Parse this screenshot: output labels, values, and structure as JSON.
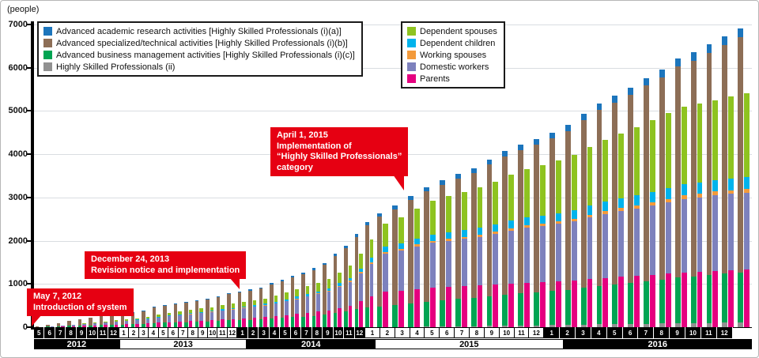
{
  "annotations": [
    {
      "lines": [
        "May 7, 2012",
        "Introduction of system"
      ]
    },
    {
      "lines": [
        "December 24, 2013",
        "Revision notice and implementation"
      ]
    },
    {
      "lines": [
        "April 1, 2015",
        "Implementation of",
        "“Highly Skilled Professionals”",
        "category"
      ]
    }
  ],
  "legend_left": [
    {
      "label": "Advanced academic research activities [Highly Skilled Professionals (i)(a)]",
      "color": "#1c75bc"
    },
    {
      "label": "Advanced specialized/technical activities [Highly Skilled Professionals (i)(b)]",
      "color": "#8d6e56"
    },
    {
      "label": "Advanced business management activities [Highly Skilled Professionals (i)(c)]",
      "color": "#00a452"
    },
    {
      "label": "Highly Skilled Professionals (ii)",
      "color": "#919191"
    }
  ],
  "legend_right": [
    {
      "label": "Dependent spouses",
      "color": "#8ec320"
    },
    {
      "label": "Dependent children",
      "color": "#00b3ec"
    },
    {
      "label": "Working spouses",
      "color": "#f39a3b"
    },
    {
      "label": "Domestic workers",
      "color": "#7d81bd"
    },
    {
      "label": "Parents",
      "color": "#e5007f"
    }
  ],
  "chart_data": {
    "type": "bar",
    "subtype": "grouped-stacked-cumulative-monthly",
    "title": "",
    "ylabel": "(people)",
    "ylim": [
      0,
      7000
    ],
    "ytick_interval": 1000,
    "grid": true,
    "years": [
      {
        "label": "2012",
        "band": "dark",
        "months": [
          5,
          6,
          7,
          8,
          9,
          10,
          11,
          12
        ]
      },
      {
        "label": "2013",
        "band": "light",
        "months": [
          1,
          2,
          3,
          4,
          5,
          6,
          7,
          8,
          9,
          10,
          11,
          12
        ]
      },
      {
        "label": "2014",
        "band": "dark",
        "months": [
          1,
          2,
          3,
          4,
          5,
          6,
          7,
          8,
          9,
          10,
          11,
          12
        ]
      },
      {
        "label": "2015",
        "band": "light",
        "months": [
          1,
          2,
          3,
          4,
          5,
          6,
          7,
          8,
          9,
          10,
          11,
          12
        ]
      },
      {
        "label": "2016",
        "band": "dark",
        "months": [
          1,
          2,
          3,
          4,
          5,
          6,
          7,
          8,
          9,
          10,
          11,
          12
        ]
      }
    ],
    "series": {
      "professionals": [
        {
          "key": "hsp-ii",
          "name": "Highly Skilled Professionals (ii)",
          "color": "#919191",
          "values": {
            "2012": [
              0,
              0,
              0,
              0,
              0,
              0,
              0,
              0
            ],
            "2013": [
              0,
              0,
              0,
              0,
              0,
              0,
              0,
              0,
              0,
              0,
              0,
              0
            ],
            "2014": [
              0,
              0,
              0,
              0,
              0,
              0,
              0,
              0,
              0,
              0,
              0,
              0
            ],
            "2015": [
              0,
              0,
              0,
              10,
              15,
              20,
              25,
              30,
              35,
              40,
              45,
              50
            ],
            "2016": [
              55,
              60,
              65,
              70,
              75,
              80,
              85,
              90,
              95,
              100,
              105,
              110
            ]
          }
        },
        {
          "key": "business-management",
          "name": "Advanced business management activities [Highly Skilled Professionals (i)(c)]",
          "color": "#00a452",
          "values": {
            "2012": [
              4,
              10,
              19,
              30,
              38,
              45,
              52,
              58
            ],
            "2013": [
              63,
              68,
              76,
              94,
              102,
              110,
              117,
              124,
              131,
              143,
              158,
              166
            ],
            "2014": [
              170,
              180,
              198,
              212,
              230,
              245,
              265,
              289,
              330,
              365,
              419,
              455
            ],
            "2015": [
              480,
              510,
              545,
              580,
              605,
              630,
              650,
              680,
              715,
              740,
              760,
              785
            ],
            "2016": [
              810,
              850,
              890,
              920,
              950,
              985,
              1015,
              1055,
              1080,
              1105,
              1130,
              1150
            ]
          }
        },
        {
          "key": "specialized-technical",
          "name": "Advanced specialized/technical activities [Highly Skilled Professionals (i)(b)]",
          "color": "#8d6e56",
          "values": {
            "2012": [
              15,
              38,
              73,
              115,
              146,
              173,
              200,
              223
            ],
            "2013": [
              242,
              261,
              292,
              361,
              392,
              423,
              450,
              477,
              504,
              550,
              608,
              639
            ],
            "2014": [
              678,
              712,
              786,
              845,
              914,
              977,
              1059,
              1151,
              1319,
              1458,
              1671,
              1902
            ],
            "2015": [
              2071,
              2220,
              2399,
              2548,
              2678,
              2788,
              2889,
              3048,
              3202,
              3318,
              3414,
              3530
            ],
            "2016": [
              3674,
              3877,
              4065,
              4204,
              4349,
              4522,
              4681,
              4883,
              4994,
              5143,
              5288,
              5442
            ]
          }
        },
        {
          "key": "academic-research",
          "name": "Advanced academic research activities [Highly Skilled Professionals (i)(a)]",
          "color": "#1c75bc",
          "values": {
            "2012": [
              1,
              2,
              3,
              5,
              6,
              7,
              8,
              9
            ],
            "2013": [
              10,
              11,
              12,
              15,
              16,
              17,
              18,
              19,
              20,
              22,
              24,
              25
            ],
            "2014": [
              27,
              28,
              31,
              33,
              36,
              38,
              41,
              45,
              51,
              57,
              65,
              73
            ],
            "2015": [
              79,
              85,
              91,
              97,
              102,
              107,
              111,
              117,
              123,
              127,
              131,
              135
            ],
            "2016": [
              141,
              148,
              155,
              161,
              166,
              173,
              179,
              187,
              191,
              197,
              202,
              208
            ]
          }
        }
      ],
      "family": [
        {
          "key": "parents",
          "name": "Parents",
          "color": "#e5007f",
          "values": {
            "2012": [
              3,
              6,
              12,
              21,
              30,
              39,
              47,
              56
            ],
            "2013": [
              65,
              73,
              84,
              101,
              114,
              126,
              138,
              150,
              163,
              177,
              191,
              205
            ],
            "2014": [
              219,
              233,
              256,
              280,
              304,
              331,
              360,
              392,
              444,
              497,
              595,
              710
            ],
            "2015": [
              820,
              850,
              885,
              915,
              930,
              945,
              960,
              985,
              1010,
              1030,
              1045,
              1060
            ],
            "2016": [
              1080,
              1110,
              1140,
              1165,
              1190,
              1215,
              1240,
              1270,
              1285,
              1305,
              1320,
              1335
            ]
          }
        },
        {
          "key": "domestic-workers",
          "name": "Domestic workers",
          "color": "#7d81bd",
          "values": {
            "2012": [
              4,
              9,
              16,
              27,
              38,
              48,
              59,
              69
            ],
            "2013": [
              79,
              89,
              101,
              123,
              136,
              150,
              163,
              176,
              189,
              204,
              219,
              235
            ],
            "2014": [
              250,
              265,
              290,
              317,
              344,
              373,
              405,
              440,
              496,
              552,
              650,
              760
            ],
            "2015": [
              880,
              930,
              985,
              1040,
              1070,
              1100,
              1130,
              1175,
              1225,
              1265,
              1295,
              1330
            ],
            "2016": [
              1370,
              1425,
              1480,
              1520,
              1560,
              1605,
              1650,
              1700,
              1720,
              1745,
              1760,
              1775
            ]
          }
        },
        {
          "key": "working-spouses",
          "name": "Working spouses",
          "color": "#f39a3b",
          "values": {
            "2012": [
              0,
              0,
              1,
              1,
              1,
              2,
              2,
              2
            ],
            "2013": [
              3,
              3,
              4,
              4,
              5,
              5,
              6,
              6,
              7,
              8,
              8,
              9
            ],
            "2014": [
              9,
              10,
              11,
              12,
              13,
              14,
              15,
              17,
              19,
              21,
              26,
              30
            ],
            "2015": [
              36,
              38,
              41,
              44,
              45,
              47,
              48,
              51,
              53,
              55,
              56,
              58
            ],
            "2016": [
              60,
              63,
              66,
              69,
              72,
              75,
              78,
              81,
              83,
              86,
              88,
              90
            ]
          }
        },
        {
          "key": "dependent-children",
          "name": "Dependent children",
          "color": "#00b3ec",
          "values": {
            "2012": [
              0,
              1,
              2,
              3,
              4,
              6,
              7,
              8
            ],
            "2013": [
              9,
              11,
              12,
              15,
              16,
              18,
              20,
              22,
              23,
              25,
              27,
              29
            ],
            "2014": [
              31,
              33,
              37,
              40,
              44,
              47,
              52,
              56,
              64,
              71,
              85,
              102
            ],
            "2015": [
              120,
              128,
              137,
              146,
              152,
              157,
              162,
              169,
              176,
              183,
              188,
              193
            ],
            "2016": [
              200,
              209,
              218,
              225,
              232,
              240,
              248,
              257,
              259,
              263,
              268,
              274
            ]
          }
        },
        {
          "key": "dependent-spouses",
          "name": "Dependent spouses",
          "color": "#8ec320",
          "values": {
            "2012": [
              1,
              2,
              4,
              8,
              12,
              15,
              20,
              25
            ],
            "2013": [
              29,
              34,
              39,
              47,
              54,
              61,
              68,
              76,
              83,
              91,
              100,
              107
            ],
            "2014": [
              116,
              124,
              136,
              151,
              165,
              180,
              198,
              215,
              247,
              279,
              344,
              428
            ],
            "2015": [
              544,
              604,
              687,
              775,
              833,
              881,
              930,
              990,
              1061,
              1117,
              1171,
              1224
            ],
            "2016": [
              1280,
              1353,
              1426,
              1501,
              1576,
              1655,
              1734,
              1792,
              1823,
              1851,
              1894,
              1936
            ]
          }
        }
      ]
    }
  }
}
